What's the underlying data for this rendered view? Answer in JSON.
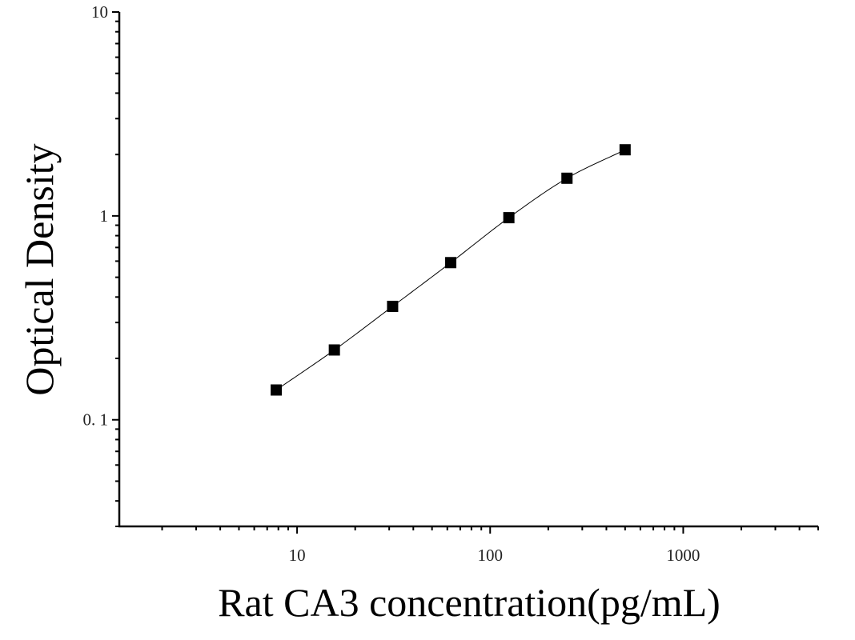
{
  "chart_data": {
    "type": "scatter",
    "title": "",
    "xlabel": "Rat CA3 concentration(pg/mL)",
    "ylabel": "Optical Density",
    "x_scale": "log",
    "y_scale": "log",
    "xlim": [
      1.2,
      5000
    ],
    "ylim": [
      0.03,
      10
    ],
    "x_ticks": [
      {
        "value": 10,
        "label": "10"
      },
      {
        "value": 100,
        "label": "100"
      },
      {
        "value": 1000,
        "label": "1000"
      }
    ],
    "y_ticks": [
      {
        "value": 0.1,
        "label": "0. 1"
      },
      {
        "value": 1,
        "label": "1"
      },
      {
        "value": 10,
        "label": "10"
      }
    ],
    "grid": false,
    "legend": "none",
    "series": [
      {
        "x": [
          7.8,
          15.6,
          31.25,
          62.5,
          125,
          250,
          500
        ],
        "y": [
          0.14,
          0.22,
          0.36,
          0.59,
          0.98,
          1.53,
          2.11
        ],
        "marker": "square",
        "color": "#000000",
        "fit_line": "smooth"
      }
    ]
  }
}
